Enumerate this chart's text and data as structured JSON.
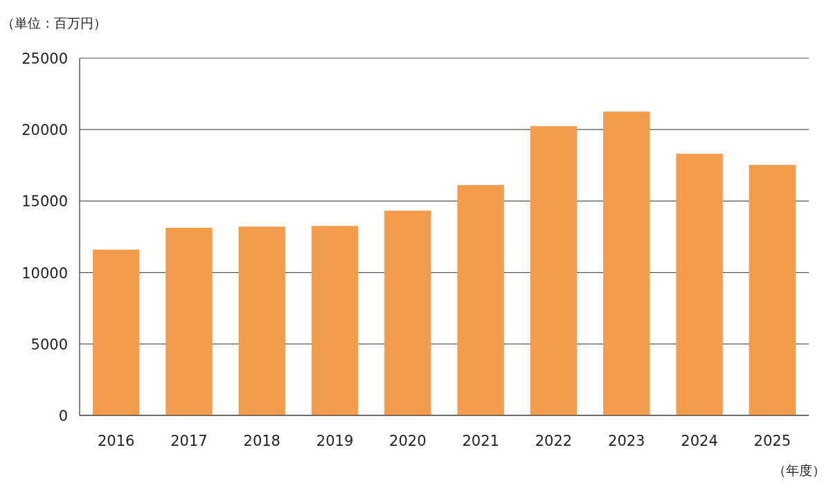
{
  "chart_data": {
    "type": "bar",
    "ylabel": "（単位：百万円）",
    "xlabel": "（年度）",
    "categories": [
      "2016",
      "2017",
      "2018",
      "2019",
      "2020",
      "2021",
      "2022",
      "2023",
      "2024",
      "2025"
    ],
    "values": [
      11600,
      13130,
      13210,
      13260,
      14330,
      16120,
      20240,
      21260,
      18310,
      17530
    ],
    "color": "#f29c4c",
    "ylim": [
      0,
      25000
    ],
    "yticks": [
      0,
      5000,
      10000,
      15000,
      20000,
      25000
    ],
    "grid": "y"
  }
}
